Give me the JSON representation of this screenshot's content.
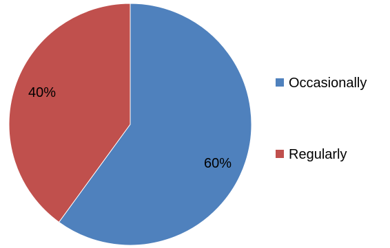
{
  "chart_data": {
    "type": "pie",
    "title": "",
    "legend_position": "right",
    "slices": [
      {
        "label": "Occasionally",
        "value": 60,
        "display": "60%",
        "color": "#4F81BD"
      },
      {
        "label": "Regularly",
        "value": 40,
        "display": "40%",
        "color": "#C0504D"
      }
    ]
  }
}
